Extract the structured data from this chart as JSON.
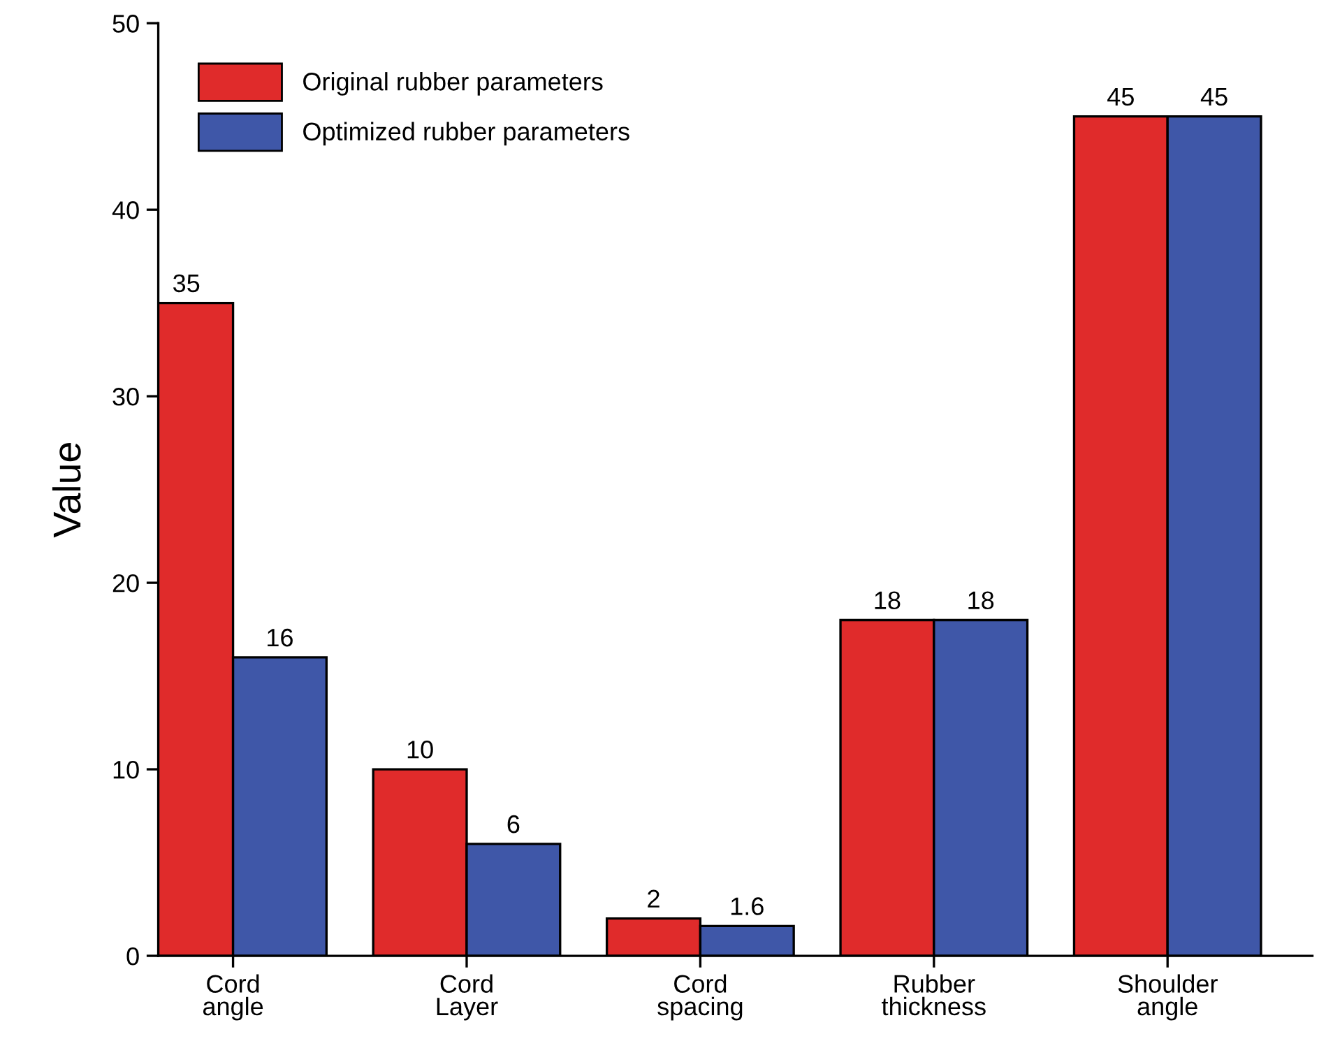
{
  "chart_data": {
    "type": "bar",
    "ylabel": "Value",
    "categories": [
      "Cord\nangle",
      "Cord\nLayer",
      "Cord\nspacing",
      "Rubber\nthickness",
      "Shoulder\nangle"
    ],
    "series": [
      {
        "name": "Original rubber parameters",
        "color": "#e02b2b",
        "values": [
          35,
          10,
          2,
          18,
          45
        ]
      },
      {
        "name": "Optimized rubber parameters",
        "color": "#3f57a8",
        "values": [
          16,
          6,
          1.6,
          18,
          45
        ]
      }
    ],
    "ylim": [
      0,
      50
    ],
    "yticks": [
      0,
      10,
      20,
      30,
      40,
      50
    ],
    "grid": false,
    "legend": "top left",
    "data_labels": true
  }
}
